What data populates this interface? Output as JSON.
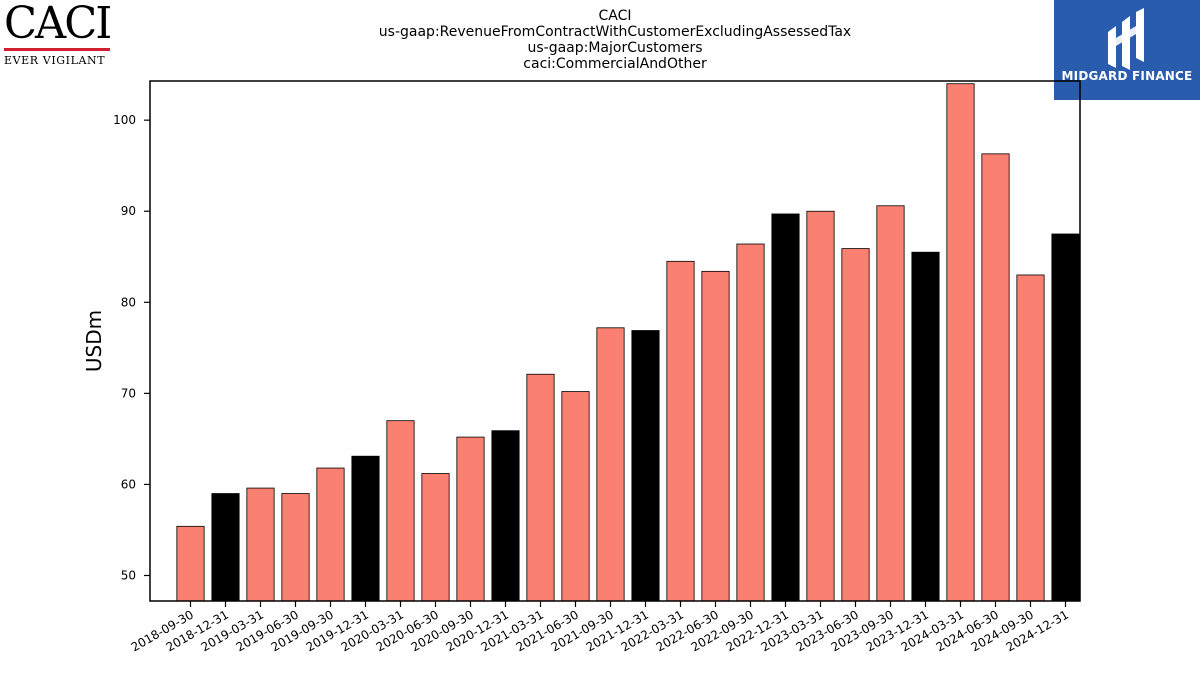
{
  "logos": {
    "left": {
      "wordmark": "CACI",
      "tagline": "EVER VIGILANT",
      "accent_color": "#d01f2e"
    },
    "right": {
      "brand": "MIDGARD FINANCE",
      "background_color": "#2a5cad"
    }
  },
  "chart_data": {
    "type": "bar",
    "title_lines": [
      "CACI",
      "us-gaap:RevenueFromContractWithCustomerExcludingAssessedTax",
      "us-gaap:MajorCustomers",
      "caci:CommercialAndOther"
    ],
    "xlabel": "",
    "ylabel": "USDm",
    "ylim": [
      47.2,
      104.3
    ],
    "yticks": [
      50,
      60,
      70,
      80,
      90,
      100
    ],
    "grid": false,
    "legend": "none",
    "colors": {
      "quarter": "#fa8072",
      "fiscal_q4": "#000000",
      "edge": "#000000"
    },
    "categories": [
      "2018-09-30",
      "2018-12-31",
      "2019-03-31",
      "2019-06-30",
      "2019-09-30",
      "2019-12-31",
      "2020-03-31",
      "2020-06-30",
      "2020-09-30",
      "2020-12-31",
      "2021-03-31",
      "2021-06-30",
      "2021-09-30",
      "2021-12-31",
      "2022-03-31",
      "2022-06-30",
      "2022-09-30",
      "2022-12-31",
      "2023-03-31",
      "2023-06-30",
      "2023-09-30",
      "2023-12-31",
      "2024-03-31",
      "2024-06-30",
      "2024-09-30",
      "2024-12-31"
    ],
    "values": [
      55.4,
      59.0,
      59.6,
      59.0,
      61.8,
      63.1,
      67.0,
      61.2,
      65.2,
      65.9,
      72.1,
      70.2,
      77.2,
      76.9,
      84.5,
      83.4,
      86.4,
      89.7,
      90.0,
      85.9,
      90.6,
      85.5,
      104.0,
      96.3,
      83.0,
      87.5
    ],
    "highlight": [
      false,
      true,
      false,
      false,
      false,
      true,
      false,
      false,
      false,
      true,
      false,
      false,
      false,
      true,
      false,
      false,
      false,
      true,
      false,
      false,
      false,
      true,
      false,
      false,
      false,
      true
    ]
  }
}
